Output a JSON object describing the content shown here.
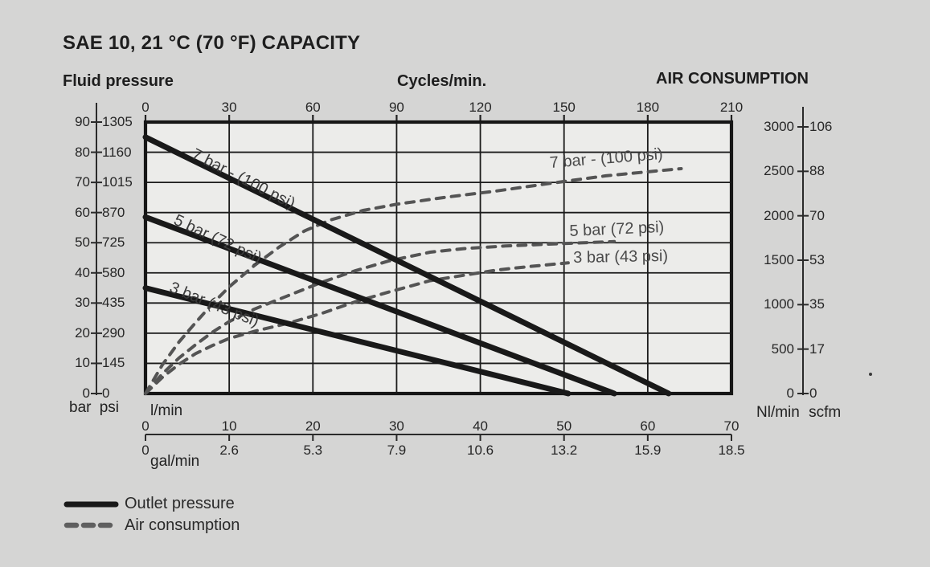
{
  "title": "SAE 10, 21 °C (70 °F) CAPACITY",
  "headers": {
    "fluid_pressure": "Fluid pressure",
    "cycles": "Cycles/min.",
    "air_consumption": "AIR CONSUMPTION"
  },
  "axes": {
    "cycles": {
      "ticks": [
        "0",
        "30",
        "60",
        "90",
        "120",
        "150",
        "180",
        "210"
      ]
    },
    "fluid": {
      "bar": [
        "90",
        "80",
        "70",
        "60",
        "50",
        "40",
        "30",
        "20",
        "10",
        "0"
      ],
      "psi": [
        "1305",
        "1160",
        "1015",
        "870",
        "725",
        "580",
        "435",
        "290",
        "145",
        "0"
      ],
      "unit": "bar psi"
    },
    "air": {
      "nlmin": [
        "3000",
        "2500",
        "2000",
        "1500",
        "1000",
        "500",
        "0"
      ],
      "scfm": [
        "106",
        "88",
        "70",
        "53",
        "35",
        "17",
        "0"
      ],
      "unit": "Nl/min scfm"
    },
    "flow": {
      "lmin": [
        "0",
        "10",
        "20",
        "30",
        "40",
        "50",
        "60",
        "70"
      ],
      "lmin_unit": "l/min",
      "gal": [
        "0",
        "2.6",
        "5.3",
        "7.9",
        "10.6",
        "13.2",
        "15.9",
        "18.5"
      ],
      "gal_unit": "gal/min"
    }
  },
  "legend": {
    "outlet": "Outlet pressure",
    "air": "Air consumption"
  },
  "colors": {
    "background": "#d5d5d4",
    "plot_background": "#ececea",
    "solid_line": "#191919",
    "dashed_line": "#545454",
    "grid": "#1b1b1b"
  },
  "chart_data": {
    "type": "line",
    "title": "SAE 10, 21 °C (70 °F) CAPACITY",
    "x_axis": {
      "top_label": "Cycles/min.",
      "top_range": [
        0,
        210
      ],
      "bottom_label": "l/min",
      "bottom_range": [
        0,
        70
      ],
      "bottom_label2": "gal/min",
      "bottom_range2": [
        0,
        18.5
      ]
    },
    "y_axis_left": {
      "label": "Fluid pressure",
      "units": [
        "bar",
        "psi"
      ],
      "range_bar": [
        0,
        90
      ],
      "range_psi": [
        0,
        1305
      ]
    },
    "y_axis_right": {
      "label": "AIR CONSUMPTION",
      "units": [
        "Nl/min",
        "scfm"
      ],
      "range_nlmin": [
        0,
        3000
      ],
      "range_scfm": [
        0,
        106
      ]
    },
    "grid": true,
    "legend_position": "bottom-left",
    "series": [
      {
        "id": "outlet-7bar",
        "label": "7 bar - (100 psi)",
        "group": "Outlet pressure",
        "line": "solid",
        "y_axis": "bar",
        "points": [
          [
            0,
            85
          ],
          [
            62.5,
            0
          ]
        ]
      },
      {
        "id": "outlet-5bar",
        "label": "5 bar (72 psi)",
        "group": "Outlet pressure",
        "line": "solid",
        "y_axis": "bar",
        "points": [
          [
            0,
            58.5
          ],
          [
            56,
            0
          ]
        ]
      },
      {
        "id": "outlet-3bar",
        "label": "3 bar (43 psi)",
        "group": "Outlet pressure",
        "line": "solid",
        "y_axis": "bar",
        "points": [
          [
            0,
            35
          ],
          [
            50.5,
            0
          ]
        ]
      },
      {
        "id": "air-7bar",
        "label": "7 bar - (100 psi)",
        "group": "Air consumption",
        "line": "dashed",
        "y_axis": "nlmin",
        "points": [
          [
            0,
            0
          ],
          [
            2,
            320
          ],
          [
            4,
            580
          ],
          [
            6,
            800
          ],
          [
            8,
            1010
          ],
          [
            10,
            1200
          ],
          [
            13,
            1440
          ],
          [
            16,
            1650
          ],
          [
            19,
            1830
          ],
          [
            22,
            1950
          ],
          [
            26,
            2060
          ],
          [
            30,
            2130
          ],
          [
            36,
            2210
          ],
          [
            42,
            2280
          ],
          [
            48,
            2360
          ],
          [
            55,
            2450
          ],
          [
            60,
            2495
          ],
          [
            64,
            2530
          ]
        ]
      },
      {
        "id": "air-5bar",
        "label": "5 bar (72 psi)",
        "group": "Air consumption",
        "line": "dashed",
        "y_axis": "nlmin",
        "points": [
          [
            0,
            0
          ],
          [
            2,
            220
          ],
          [
            4,
            400
          ],
          [
            6,
            550
          ],
          [
            8,
            690
          ],
          [
            10,
            810
          ],
          [
            13,
            950
          ],
          [
            17,
            1100
          ],
          [
            21,
            1250
          ],
          [
            25,
            1380
          ],
          [
            29,
            1490
          ],
          [
            34,
            1590
          ],
          [
            38,
            1630
          ],
          [
            43,
            1660
          ],
          [
            48,
            1680
          ],
          [
            52,
            1695
          ],
          [
            56,
            1710
          ]
        ]
      },
      {
        "id": "air-3bar",
        "label": "3 bar (43 psi)",
        "group": "Air consumption",
        "line": "dashed",
        "y_axis": "nlmin",
        "points": [
          [
            0,
            0
          ],
          [
            2,
            180
          ],
          [
            4,
            330
          ],
          [
            6,
            450
          ],
          [
            8,
            540
          ],
          [
            10,
            620
          ],
          [
            13,
            700
          ],
          [
            17,
            790
          ],
          [
            21,
            900
          ],
          [
            25,
            1030
          ],
          [
            29,
            1140
          ],
          [
            34,
            1270
          ],
          [
            38,
            1330
          ],
          [
            42,
            1390
          ],
          [
            46,
            1430
          ],
          [
            50.5,
            1470
          ]
        ]
      }
    ]
  }
}
